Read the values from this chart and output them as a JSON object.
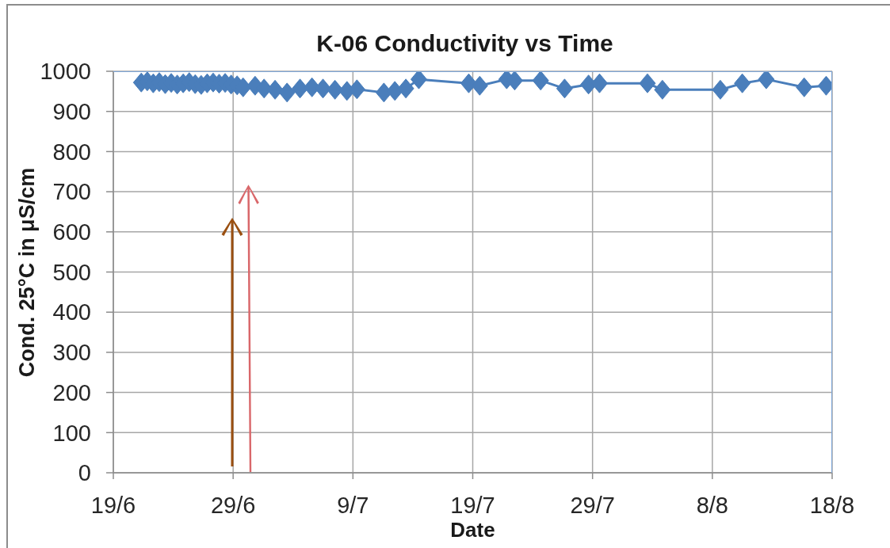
{
  "chart_data": {
    "type": "line",
    "title": "K-06 Conductivity vs Time",
    "xlabel": "Date",
    "ylabel": "Cond. 25°C in μS/cm",
    "x": [
      "--06-21T08:00",
      "--06-21T20:00",
      "--06-22T08:00",
      "--06-22T20:00",
      "--06-23T08:00",
      "--06-23T20:00",
      "--06-24T08:00",
      "--06-24T20:00",
      "--06-25T08:00",
      "--06-25T20:00",
      "--06-26T08:00",
      "--06-26T20:00",
      "--06-27T08:00",
      "--06-27T20:00",
      "--06-28T08:00",
      "--06-28T20:00",
      "--06-29T08:00",
      "--06-29T20:00",
      "--06-30T20:00",
      "--07-01T14:00",
      "--07-02T12:00",
      "--07-03T12:00",
      "--07-04T14:00",
      "--07-05T14:00",
      "--07-06T12:00",
      "--07-07T12:00",
      "--07-08T12:00",
      "--07-09T08:00",
      "--07-11T14:00",
      "--07-12T12:00",
      "--07-13T10:00",
      "--07-14T12:00",
      "--07-18T16:00",
      "--07-19T14:00",
      "--07-21T20:00",
      "--07-22T12:00",
      "--07-24T16:00",
      "--07-26T16:00",
      "--07-28T16:00",
      "--07-29T14:00",
      "--08-02T14:00",
      "--08-03T20:00",
      "--08-08T16:00",
      "--08-10T12:00",
      "--08-12T12:00",
      "--08-15T16:00",
      "--08-17T12:00"
    ],
    "values": [
      972,
      975,
      970,
      973,
      968,
      971,
      967,
      970,
      973,
      968,
      966,
      970,
      972,
      969,
      971,
      967,
      965,
      960,
      964,
      957,
      954,
      947,
      957,
      960,
      957,
      954,
      951,
      955,
      947,
      951,
      957,
      980,
      970,
      964,
      980,
      977,
      977,
      957,
      967,
      970,
      970,
      954,
      954,
      970,
      980,
      960,
      964
    ],
    "color": "#4a7ebb",
    "marker": "diamond",
    "line_style": "solid",
    "xlim": [
      "--06-19",
      "--08-18"
    ],
    "xticks": [
      {
        "value": "--06-19",
        "label": "19/6"
      },
      {
        "value": "--06-29",
        "label": "29/6"
      },
      {
        "value": "--07-09",
        "label": "9/7"
      },
      {
        "value": "--07-19",
        "label": "19/7"
      },
      {
        "value": "--07-29",
        "label": "29/7"
      },
      {
        "value": "--08-08",
        "label": "8/8"
      },
      {
        "value": "--08-18",
        "label": "18/8"
      }
    ],
    "ylim": [
      0,
      1000
    ],
    "yticks": [
      0,
      100,
      200,
      300,
      400,
      500,
      600,
      700,
      800,
      900,
      1000
    ],
    "grid": true
  }
}
